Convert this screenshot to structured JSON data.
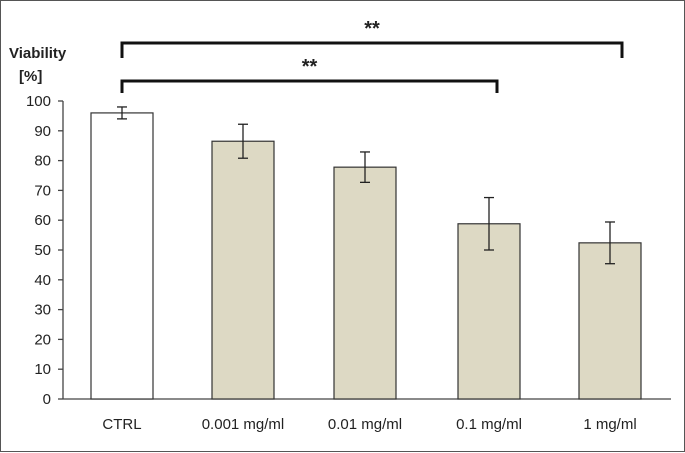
{
  "chart_data": {
    "type": "bar",
    "title": "",
    "ylabel": "Viability [%]",
    "ylabel_lines": [
      "Viability",
      "[%]"
    ],
    "xlabel": "",
    "ylim": [
      0,
      100
    ],
    "yticks": [
      0,
      10,
      20,
      30,
      40,
      50,
      60,
      70,
      80,
      90,
      100
    ],
    "grid": false,
    "categories": [
      "CTRL",
      "0.001 mg/ml",
      "0.01 mg/ml",
      "0.1 mg/ml",
      "1 mg/ml"
    ],
    "values": [
      96,
      86.5,
      77.8,
      58.8,
      52.4
    ],
    "errors": [
      2,
      5.7,
      5.1,
      8.8,
      7
    ],
    "bar_colors": [
      "#ffffff",
      "#ddd9c4",
      "#ddd9c4",
      "#ddd9c4",
      "#ddd9c4"
    ],
    "significance": [
      {
        "from": "CTRL",
        "to": "1 mg/ml",
        "label": "**"
      },
      {
        "from": "CTRL",
        "to": "0.1 mg/ml",
        "label": "**"
      }
    ]
  }
}
